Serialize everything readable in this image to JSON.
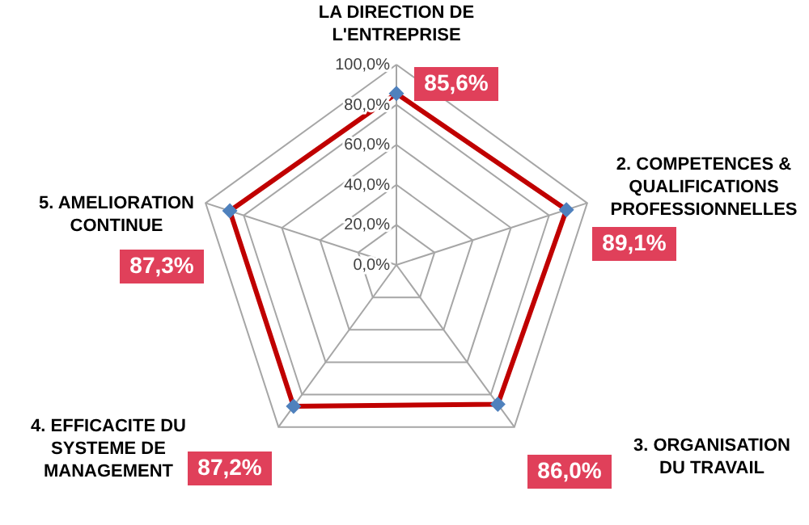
{
  "chart_data": {
    "type": "radar",
    "categories": [
      "LA DIRECTION DE L'ENTREPRISE",
      "2. COMPETENCES & QUALIFICATIONS PROFESSIONNELLES",
      "3. ORGANISATION DU TRAVAIL",
      "4. EFFICACITE DU SYSTEME DE MANAGEMENT",
      "5. AMELIORATION CONTINUE"
    ],
    "series": [
      {
        "color": "#c00000",
        "values": [
          85.6,
          89.1,
          86.0,
          87.2,
          87.3
        ],
        "value_labels": [
          "85,6%",
          "89,1%",
          "86,0%",
          "87,2%",
          "87,3%"
        ]
      }
    ],
    "ylim": [
      0,
      100
    ],
    "yticks": [
      {
        "value": 0,
        "label": "0,0%"
      },
      {
        "value": 20,
        "label": "20,0%"
      },
      {
        "value": 40,
        "label": "40,0%"
      },
      {
        "value": 60,
        "label": "60,0%"
      },
      {
        "value": 80,
        "label": "80,0%"
      },
      {
        "value": 100,
        "label": "100,0%"
      }
    ],
    "grid": true,
    "marker": "diamond",
    "line_style": "solid"
  }
}
